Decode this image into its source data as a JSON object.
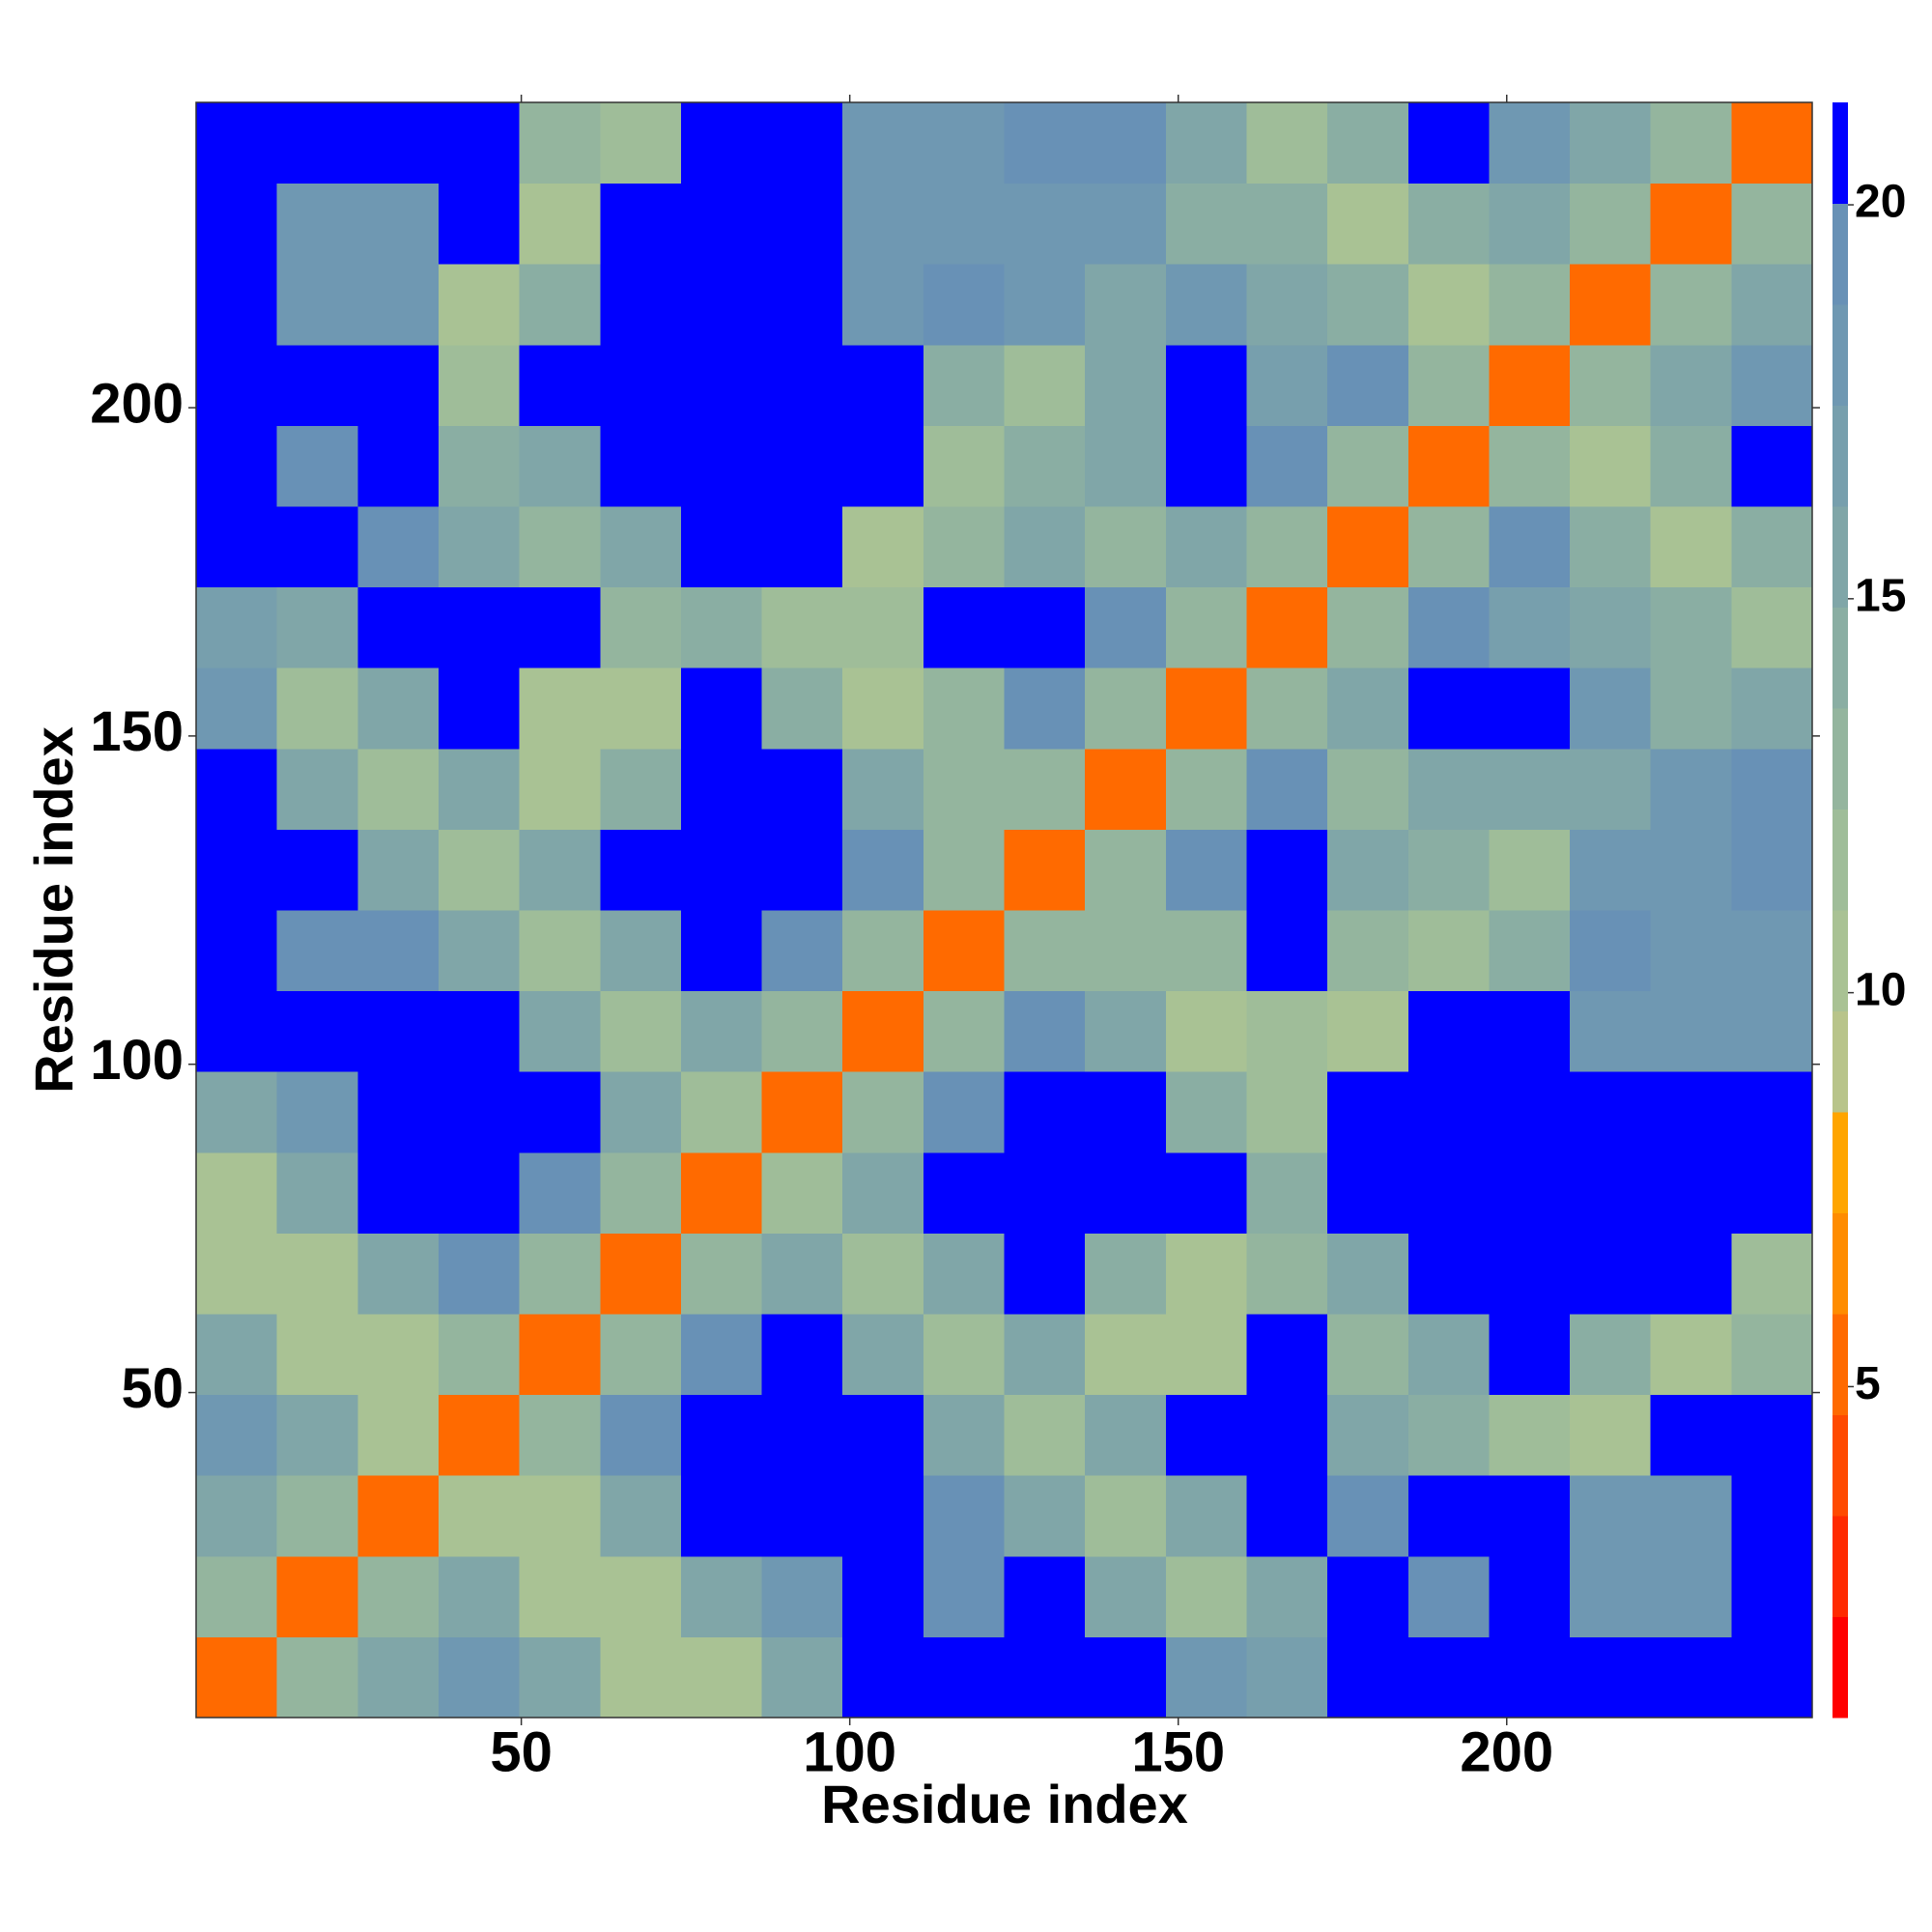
{
  "chart_data": {
    "type": "heatmap",
    "xlabel": "Residue index",
    "ylabel": "Residue index",
    "xlim": [
      0.5,
      246.5
    ],
    "ylim": [
      0.5,
      246.5
    ],
    "xticks": [
      50,
      100,
      150,
      200
    ],
    "yticks": [
      50,
      100,
      150,
      200
    ],
    "xbins": [
      0.5,
      12.8,
      25.1,
      37.4,
      49.7,
      62,
      74.3,
      86.6,
      98.9,
      111.2,
      123.5,
      135.8,
      148.1,
      160.4,
      172.7,
      185,
      197.3,
      209.6,
      221.9,
      234.2,
      246.5
    ],
    "ybins": [
      0.5,
      12.8,
      25.1,
      37.4,
      49.7,
      62,
      74.3,
      86.6,
      98.9,
      111.2,
      123.5,
      135.8,
      148.1,
      160.4,
      172.7,
      185,
      197.3,
      209.6,
      221.9,
      234.2,
      246.5
    ],
    "z": [
      [
        5,
        13,
        16,
        18,
        16,
        11,
        10,
        16,
        21,
        21,
        21,
        21,
        18,
        17,
        21,
        21,
        21,
        21,
        21,
        21
      ],
      [
        13,
        5,
        13,
        16,
        11,
        10,
        16,
        18,
        21,
        19,
        21,
        15,
        12,
        15,
        21,
        19,
        21,
        18,
        18,
        21
      ],
      [
        16,
        13,
        5,
        11,
        10,
        16,
        21,
        21,
        21,
        19,
        15,
        12,
        15,
        21,
        19,
        21,
        21,
        18,
        18,
        21
      ],
      [
        18,
        16,
        11,
        5,
        13,
        19,
        21,
        21,
        21,
        15,
        12,
        15,
        21,
        21,
        16,
        14,
        12,
        10,
        21,
        21
      ],
      [
        16,
        11,
        10,
        13,
        5,
        13,
        19,
        21,
        15,
        12,
        15,
        11,
        11,
        21,
        13,
        15,
        21,
        14,
        10,
        13
      ],
      [
        11,
        10,
        16,
        19,
        13,
        5,
        13,
        15,
        12,
        15,
        21,
        14,
        10,
        13,
        16,
        21,
        21,
        21,
        21,
        12
      ],
      [
        10,
        16,
        21,
        21,
        19,
        13,
        5,
        12,
        15,
        21,
        21,
        21,
        21,
        14,
        21,
        21,
        21,
        21,
        21,
        21
      ],
      [
        16,
        18,
        21,
        21,
        21,
        15,
        12,
        5,
        13,
        19,
        21,
        21,
        14,
        12,
        21,
        21,
        21,
        21,
        21,
        21
      ],
      [
        21,
        21,
        21,
        21,
        15,
        12,
        15,
        13,
        5,
        13,
        19,
        15,
        11,
        12,
        11,
        21,
        21,
        18,
        18,
        18
      ],
      [
        21,
        19,
        19,
        15,
        12,
        15,
        21,
        19,
        13,
        5,
        13,
        13,
        13,
        21,
        13,
        12,
        14,
        19,
        18,
        18
      ],
      [
        21,
        21,
        15,
        12,
        15,
        21,
        21,
        21,
        19,
        13,
        5,
        13,
        19,
        21,
        16,
        14,
        12,
        18,
        18,
        19
      ],
      [
        21,
        15,
        12,
        15,
        11,
        14,
        21,
        21,
        15,
        13,
        13,
        5,
        13,
        19,
        13,
        15,
        15,
        16,
        18,
        19
      ],
      [
        18,
        12,
        15,
        21,
        11,
        10,
        21,
        14,
        11,
        13,
        19,
        13,
        5,
        13,
        16,
        21,
        21,
        18,
        14,
        15
      ],
      [
        17,
        15,
        21,
        21,
        21,
        13,
        14,
        12,
        12,
        21,
        21,
        19,
        13,
        5,
        13,
        19,
        17,
        15,
        14,
        12
      ],
      [
        21,
        21,
        19,
        16,
        13,
        16,
        21,
        21,
        11,
        13,
        16,
        13,
        16,
        13,
        5,
        13,
        19,
        14,
        11,
        14
      ],
      [
        21,
        19,
        21,
        14,
        15,
        21,
        21,
        21,
        21,
        12,
        14,
        15,
        21,
        19,
        13,
        5,
        13,
        11,
        14,
        21
      ],
      [
        21,
        21,
        21,
        12,
        21,
        21,
        21,
        21,
        21,
        14,
        12,
        15,
        21,
        17,
        19,
        13,
        5,
        13,
        15,
        18
      ],
      [
        21,
        18,
        18,
        10,
        14,
        21,
        21,
        21,
        18,
        19,
        18,
        16,
        18,
        15,
        14,
        11,
        13,
        5,
        13,
        15
      ],
      [
        21,
        18,
        18,
        21,
        10,
        21,
        21,
        21,
        18,
        18,
        18,
        18,
        14,
        14,
        11,
        14,
        15,
        13,
        5,
        13
      ],
      [
        21,
        21,
        21,
        21,
        13,
        12,
        21,
        21,
        18,
        18,
        19,
        19,
        15,
        12,
        14,
        21,
        18,
        15,
        13,
        5
      ]
    ],
    "clim": [
      0.8,
      21.3
    ],
    "colorbar_ticks": [
      5,
      10,
      15,
      20
    ],
    "colors": [
      "#ff0000",
      "#ff2a00",
      "#ff4a00",
      "#ff6a00",
      "#ff8c00",
      "#ffa500",
      "#b8c48a",
      "#a9c294",
      "#9fbd99",
      "#94b59e",
      "#8aaea3",
      "#80a6a8",
      "#779fad",
      "#6f98b2",
      "#6891b6",
      "#0000ff"
    ]
  }
}
